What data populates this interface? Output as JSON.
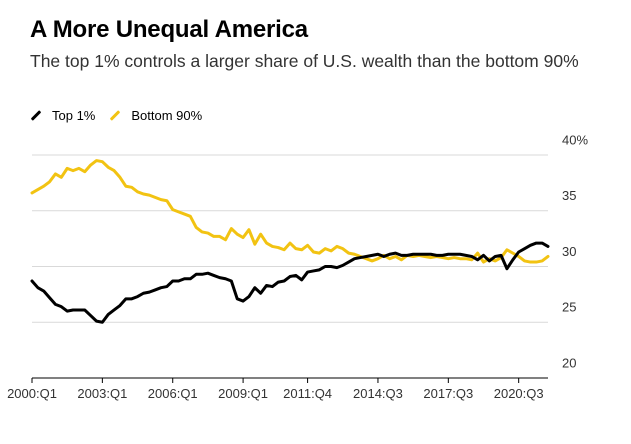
{
  "header": {
    "title": "A More Unequal America",
    "subtitle": "The top 1% controls a larger share of U.S. wealth than the bottom 90%"
  },
  "legend": [
    {
      "label": "Top 1%",
      "color": "#000000"
    },
    {
      "label": "Bottom 90%",
      "color": "#f2c312"
    }
  ],
  "chart_data": {
    "type": "line",
    "title": "A More Unequal America",
    "subtitle": "The top 1% controls a larger share of U.S. wealth than the bottom 90%",
    "xlabel": "",
    "ylabel": "",
    "ylim": [
      20,
      40
    ],
    "y_ticks": [
      20,
      25,
      30,
      35,
      40
    ],
    "y_tick_labels": [
      "20",
      "25",
      "30",
      "35",
      "40%"
    ],
    "x_ticks": [
      0,
      12,
      24,
      36,
      47,
      59,
      71,
      83
    ],
    "x_tick_labels": [
      "2000:Q1",
      "2003:Q1",
      "2006:Q1",
      "2009:Q1",
      "2011:Q4",
      "2014:Q3",
      "2017:Q3",
      "2020:Q3"
    ],
    "x_range": [
      0,
      88
    ],
    "series": [
      {
        "name": "Top 1%",
        "color": "#000000",
        "values": [
          28.7,
          28.1,
          27.8,
          27.2,
          26.6,
          26.4,
          26.0,
          26.1,
          26.1,
          26.1,
          25.6,
          25.1,
          25.0,
          25.7,
          26.1,
          26.5,
          27.1,
          27.1,
          27.3,
          27.6,
          27.7,
          27.9,
          28.1,
          28.2,
          28.7,
          28.7,
          28.9,
          28.9,
          29.3,
          29.3,
          29.4,
          29.2,
          29.0,
          28.9,
          28.7,
          27.1,
          26.9,
          27.3,
          28.1,
          27.6,
          28.3,
          28.2,
          28.6,
          28.7,
          29.1,
          29.2,
          28.8,
          29.5,
          29.6,
          29.7,
          30.0,
          30.0,
          29.9,
          30.1,
          30.4,
          30.7,
          30.8,
          30.9,
          31.0,
          31.1,
          30.9,
          31.1,
          31.2,
          31.0,
          31.0,
          31.1,
          31.1,
          31.1,
          31.1,
          31.0,
          31.0,
          31.1,
          31.1,
          31.1,
          31.0,
          30.9,
          30.6,
          31.0,
          30.5,
          30.9,
          31.0,
          29.8,
          30.6,
          31.3,
          31.6,
          31.9,
          32.1,
          32.1,
          31.8
        ]
      },
      {
        "name": "Bottom 90%",
        "color": "#f2c312",
        "values": [
          36.6,
          36.9,
          37.2,
          37.6,
          38.3,
          38.0,
          38.8,
          38.6,
          38.8,
          38.5,
          39.1,
          39.5,
          39.4,
          38.9,
          38.6,
          38.0,
          37.2,
          37.1,
          36.7,
          36.5,
          36.4,
          36.2,
          36.0,
          35.9,
          35.1,
          34.9,
          34.7,
          34.5,
          33.5,
          33.1,
          33.0,
          32.7,
          32.7,
          32.4,
          33.4,
          32.9,
          32.6,
          33.3,
          32.0,
          32.9,
          32.1,
          31.8,
          31.7,
          31.5,
          32.1,
          31.6,
          31.5,
          31.9,
          31.3,
          31.2,
          31.6,
          31.4,
          31.8,
          31.6,
          31.2,
          31.1,
          30.9,
          30.7,
          30.5,
          30.7,
          31.0,
          30.7,
          30.9,
          30.6,
          31.0,
          30.9,
          31.0,
          30.9,
          30.8,
          30.9,
          30.8,
          30.7,
          30.8,
          30.7,
          30.7,
          30.6,
          31.2,
          30.4,
          30.7,
          30.5,
          30.8,
          31.5,
          31.2,
          30.9,
          30.5,
          30.4,
          30.4,
          30.5,
          30.9
        ]
      }
    ]
  }
}
